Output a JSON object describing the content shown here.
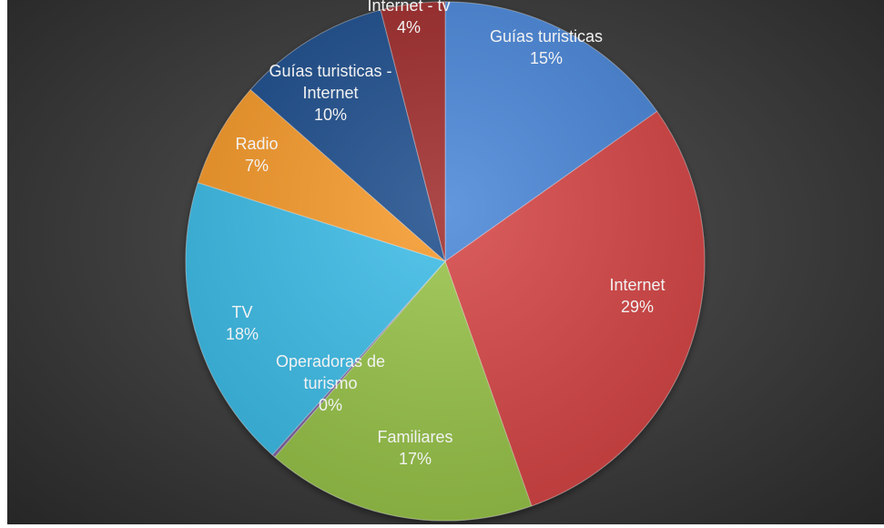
{
  "chart_data": {
    "type": "pie",
    "title": "",
    "legend": "none",
    "data_labels": "category and percent",
    "start_angle_deg": 0,
    "direction": "clockwise",
    "slices": [
      {
        "label": "Guías turisticas",
        "percent_text": "15%",
        "value": 15.2,
        "color": "#4a86d8"
      },
      {
        "label": "Internet",
        "percent_text": "29%",
        "value": 29.4,
        "color": "#d64545"
      },
      {
        "label": "Familiares",
        "percent_text": "17%",
        "value": 16.8,
        "color": "#98c44a"
      },
      {
        "label": "Operadoras de turismo",
        "percent_text": "0%",
        "value": 0.2,
        "color": "#8064a2"
      },
      {
        "label": "TV",
        "percent_text": "18%",
        "value": 18.3,
        "color": "#3cbde8"
      },
      {
        "label": "Radio",
        "percent_text": "7%",
        "value": 6.6,
        "color": "#f79a2c"
      },
      {
        "label": "Guías turisticas - Internet",
        "percent_text": "10%",
        "value": 9.5,
        "color": "#1f4e8c"
      },
      {
        "label": "Internet - tv",
        "percent_text": "4%",
        "value": 4.0,
        "color": "#9e2a2a"
      }
    ]
  }
}
